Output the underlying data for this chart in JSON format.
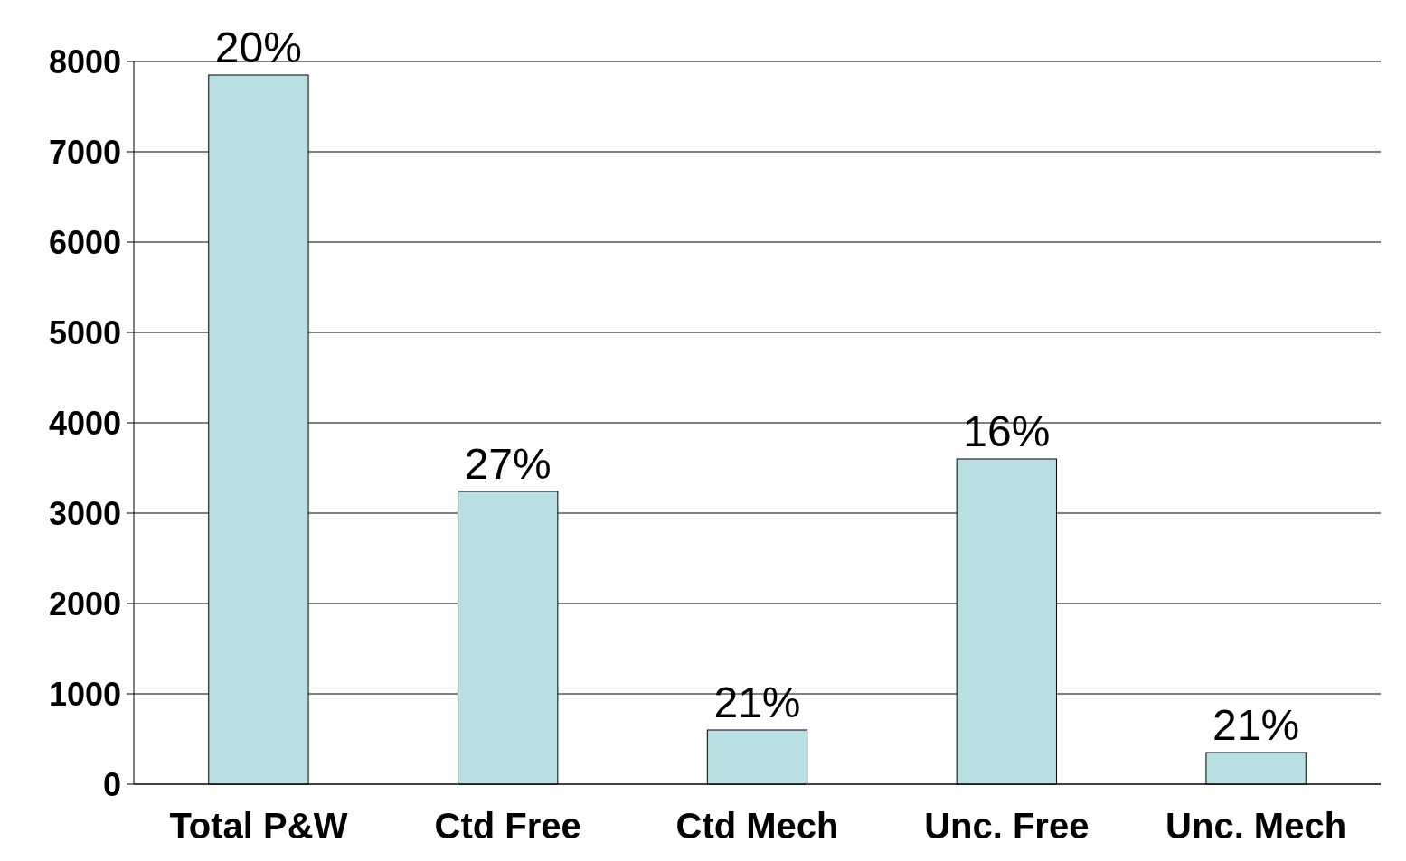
{
  "chart_data": {
    "type": "bar",
    "categories": [
      "Total P&W",
      "Ctd Free",
      "Ctd Mech",
      "Unc. Free",
      "Unc. Mech"
    ],
    "values": [
      7850,
      3240,
      600,
      3600,
      350
    ],
    "annotations": [
      {
        "text": "20%",
        "x": "Total P&W",
        "y": 7850
      },
      {
        "text": "27%",
        "x": "Ctd Free",
        "y": 3240
      },
      {
        "text": "21%",
        "x": "Ctd Mech",
        "y": 600
      },
      {
        "text": "16%",
        "x": "Unc. Free",
        "y": 3600
      },
      {
        "text": "21%",
        "x": "Unc. Mech",
        "y": 350
      }
    ],
    "color": "#b8e0e2",
    "ylim": [
      0,
      8000
    ],
    "yticks": [
      0,
      1000,
      2000,
      3000,
      4000,
      5000,
      6000,
      7000,
      8000
    ],
    "grid": "y"
  }
}
